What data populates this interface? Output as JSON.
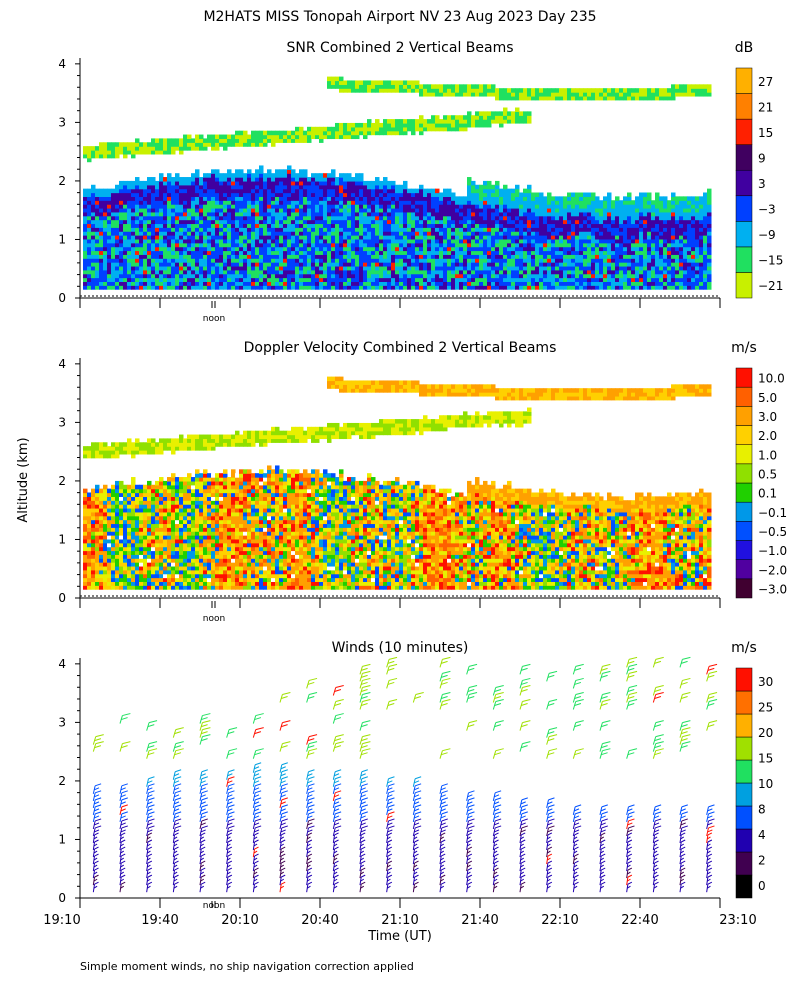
{
  "page": {
    "title": "M2HATS MISS Tonopah Airport NV  23 Aug 2023 Day 235",
    "ylabel": "Altitude (km)",
    "xlabel": "Time (UT)",
    "footnote": "Simple moment winds, no ship navigation correction applied",
    "noon_label": "noon"
  },
  "chart_data": [
    {
      "type": "heatmap",
      "title": "SNR Combined 2 Vertical Beams",
      "units": "dB",
      "ylim": [
        0,
        4.1
      ],
      "yticks": [
        "0",
        "1",
        "2",
        "3",
        "4"
      ],
      "colorbar_labels": [
        "27",
        "21",
        "15",
        "9",
        "3",
        "−3",
        "−9",
        "−15",
        "−21"
      ],
      "colors": [
        "#c8f000",
        "#20e060",
        "#00b0f0",
        "#0040ff",
        "#4000a0",
        "#400060",
        "#ff2000",
        "#ff8000",
        "#ffb000"
      ],
      "profile_summary": {
        "lower_layer_top_km": 2.0,
        "upper_echo_km": [
          2.5,
          3.8
        ]
      }
    },
    {
      "type": "heatmap",
      "title": "Doppler Velocity Combined 2 Vertical Beams",
      "units": "m/s",
      "ylim": [
        0,
        4.1
      ],
      "yticks": [
        "0",
        "1",
        "2",
        "3",
        "4"
      ],
      "colorbar_labels": [
        "10.0",
        "5.0",
        "3.0",
        "2.0",
        "1.0",
        "0.5",
        "0.1",
        "−0.1",
        "−0.5",
        "−1.0",
        "−2.0",
        "−3.0"
      ],
      "colors": [
        "#400030",
        "#5000a0",
        "#2010e0",
        "#0050ff",
        "#0098e8",
        "#20d000",
        "#90e000",
        "#e8f000",
        "#ffd000",
        "#ffa000",
        "#ff6000",
        "#ff1000"
      ]
    },
    {
      "type": "scatter",
      "title": "Winds (10 minutes)",
      "units": "m/s",
      "ylim": [
        0,
        4.1
      ],
      "yticks": [
        "0",
        "1",
        "2",
        "3",
        "4"
      ],
      "colorbar_labels": [
        "30",
        "25",
        "20",
        "15",
        "10",
        "8",
        "4",
        "2",
        "0"
      ],
      "colors": [
        "#000000",
        "#400050",
        "#2000b0",
        "#0050ff",
        "#00a0e0",
        "#20e060",
        "#a0e000",
        "#ffb000",
        "#ff7000",
        "#ff1000"
      ],
      "time_columns_utc": [
        "19:10",
        "19:20",
        "19:30",
        "19:40",
        "19:50",
        "20:00",
        "20:10",
        "20:20",
        "20:30",
        "20:40",
        "20:50",
        "21:00",
        "21:10",
        "21:20",
        "21:30",
        "21:40",
        "21:50",
        "22:00",
        "22:10",
        "22:20",
        "22:30",
        "22:40",
        "22:50",
        "23:00"
      ]
    }
  ],
  "x_axis": {
    "xlim_hours": [
      19.1667,
      23.1667
    ],
    "ticks": [
      "19:10",
      "19:40",
      "20:10",
      "20:40",
      "21:10",
      "21:40",
      "22:10",
      "22:40",
      "23:10"
    ]
  }
}
